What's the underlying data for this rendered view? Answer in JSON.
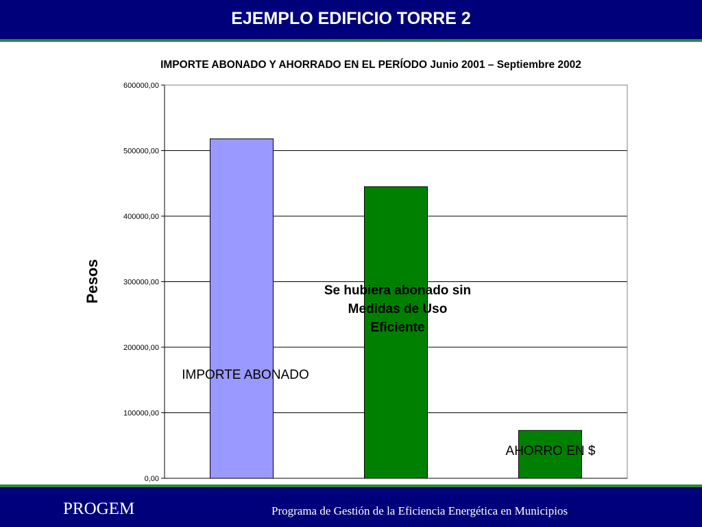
{
  "header": {
    "title": "EJEMPLO EDIFICIO TORRE 2"
  },
  "footer": {
    "brand": "PROGEM",
    "program": "Programa de Gestión de la Eficiencia Energética en Municipios"
  },
  "colors": {
    "header_bg": "#00007a",
    "stripe": "#2a8a3a",
    "bar_abonado": "#9999ff",
    "bar_green": "#008000"
  },
  "chart_data": {
    "type": "bar",
    "title": "IMPORTE ABONADO Y AHORRADO EN EL PERÍODO Junio 2001 – Septiembre 2002",
    "ylabel": "Pesos",
    "xlabel": "",
    "ylim": [
      0,
      600000
    ],
    "grid": true,
    "yticks": [
      "0,00",
      "100000,00",
      "200000,00",
      "300000,00",
      "400000,00",
      "500000,00",
      "600000,00"
    ],
    "bars": [
      {
        "value": 518000,
        "color": "#9999ff",
        "annotation": "IMPORTE ABONADO"
      },
      {
        "value": 445000,
        "color": "#008000",
        "annotation": "Se hubiera abonado sin Medidas de Uso Eficiente"
      },
      {
        "value": 73000,
        "color": "#008000",
        "annotation": "AHORRO EN $"
      }
    ]
  }
}
